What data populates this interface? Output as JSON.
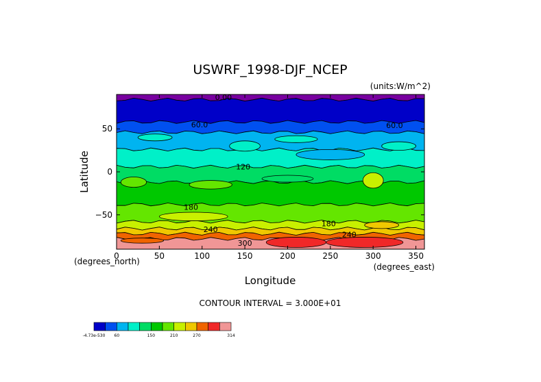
{
  "chart_data": {
    "type": "heatmap",
    "title": "USWRF_1998-DJF_NCEP",
    "units_label": "(units:W/m^2)",
    "xlabel": "Longitude",
    "ylabel": "Latitude",
    "x_unit_label": "(degrees_east)",
    "y_unit_label": "(degrees_north)",
    "xlim": [
      0,
      360
    ],
    "ylim": [
      -90,
      90
    ],
    "x_ticks": [
      "0",
      "50",
      "100",
      "150",
      "200",
      "250",
      "300",
      "350"
    ],
    "x_tick_values": [
      0,
      50,
      100,
      150,
      200,
      250,
      300,
      350
    ],
    "y_ticks": [
      "50",
      "0",
      "−50"
    ],
    "y_tick_values": [
      50,
      0,
      -50
    ],
    "footnote": "CONTOUR INTERVAL = 3.000E+01",
    "contour_interval": 30,
    "contour_labels": [
      {
        "text": "0.00",
        "lon": 125,
        "lat": 87
      },
      {
        "text": "60.0",
        "lon": 97,
        "lat": 55
      },
      {
        "text": "60.0",
        "lon": 325,
        "lat": 54
      },
      {
        "text": "120",
        "lon": 148,
        "lat": 6
      },
      {
        "text": "180",
        "lon": 87,
        "lat": -41
      },
      {
        "text": "240",
        "lon": 110,
        "lat": -67
      },
      {
        "text": "180",
        "lon": 248,
        "lat": -60
      },
      {
        "text": "240",
        "lon": 272,
        "lat": -73
      },
      {
        "text": "300",
        "lon": 150,
        "lat": -83
      }
    ],
    "levels": [
      -0.0,
      30,
      60,
      90,
      120,
      150,
      180,
      210,
      240,
      270,
      300,
      314
    ],
    "colors": [
      "#0000c8",
      "#0050f0",
      "#00b4f0",
      "#00f0c8",
      "#00dc64",
      "#00c800",
      "#64e600",
      "#c8f000",
      "#f0c800",
      "#f06400",
      "#f02828",
      "#f09696"
    ],
    "colorbar_ticks": [
      "-4.73e-530",
      "60",
      "150",
      "210",
      "270",
      "314"
    ],
    "bands": [
      {
        "lat_top": 90,
        "lat_bottom": 84,
        "value": -0.0,
        "color": "#7800a0"
      },
      {
        "lat_top": 84,
        "lat_bottom": 58,
        "value": 15,
        "color": "#0000c8"
      },
      {
        "lat_top": 58,
        "lat_bottom": 46,
        "value": 45,
        "color": "#0050f0"
      },
      {
        "lat_top": 46,
        "lat_bottom": 26,
        "value": 75,
        "color": "#00b4f0"
      },
      {
        "lat_top": 26,
        "lat_bottom": 6,
        "value": 105,
        "color": "#00f0c8"
      },
      {
        "lat_top": 6,
        "lat_bottom": -12,
        "value": 135,
        "color": "#00dc64"
      },
      {
        "lat_top": -12,
        "lat_bottom": -38,
        "value": 165,
        "color": "#00c800"
      },
      {
        "lat_top": -38,
        "lat_bottom": -58,
        "value": 195,
        "color": "#64e600"
      },
      {
        "lat_top": -58,
        "lat_bottom": -66,
        "value": 225,
        "color": "#c8f000"
      },
      {
        "lat_top": -66,
        "lat_bottom": -72,
        "value": 255,
        "color": "#f0c800"
      },
      {
        "lat_top": -72,
        "lat_bottom": -78,
        "value": 285,
        "color": "#f06400"
      },
      {
        "lat_top": -78,
        "lat_bottom": -90,
        "value": 307,
        "color": "#f09696"
      }
    ],
    "patches": [
      {
        "lon": 45,
        "lat": 40,
        "rx": 20,
        "ry": 4,
        "color": "#00f0c8"
      },
      {
        "lon": 150,
        "lat": 30,
        "rx": 18,
        "ry": 6,
        "color": "#00f0c8"
      },
      {
        "lon": 210,
        "lat": 38,
        "rx": 25,
        "ry": 4,
        "color": "#00f0c8"
      },
      {
        "lon": 250,
        "lat": 20,
        "rx": 40,
        "ry": 6,
        "color": "#00b4f0"
      },
      {
        "lon": 330,
        "lat": 30,
        "rx": 20,
        "ry": 5,
        "color": "#00f0c8"
      },
      {
        "lon": 20,
        "lat": -12,
        "rx": 15,
        "ry": 6,
        "color": "#64e600"
      },
      {
        "lon": 110,
        "lat": -15,
        "rx": 25,
        "ry": 5,
        "color": "#64e600"
      },
      {
        "lon": 200,
        "lat": -8,
        "rx": 30,
        "ry": 4,
        "color": "#00dc64"
      },
      {
        "lon": 300,
        "lat": -10,
        "rx": 12,
        "ry": 9,
        "color": "#c8f000"
      },
      {
        "lon": 90,
        "lat": -52,
        "rx": 40,
        "ry": 5,
        "color": "#c8f000"
      },
      {
        "lon": 310,
        "lat": -62,
        "rx": 20,
        "ry": 4,
        "color": "#f0c800"
      },
      {
        "lon": 210,
        "lat": -82,
        "rx": 35,
        "ry": 6,
        "color": "#f02828"
      },
      {
        "lon": 290,
        "lat": -82,
        "rx": 45,
        "ry": 6,
        "color": "#f02828"
      },
      {
        "lon": 30,
        "lat": -80,
        "rx": 25,
        "ry": 3,
        "color": "#f06400"
      }
    ],
    "grid": false,
    "legend": "colorbar bottom-left"
  }
}
